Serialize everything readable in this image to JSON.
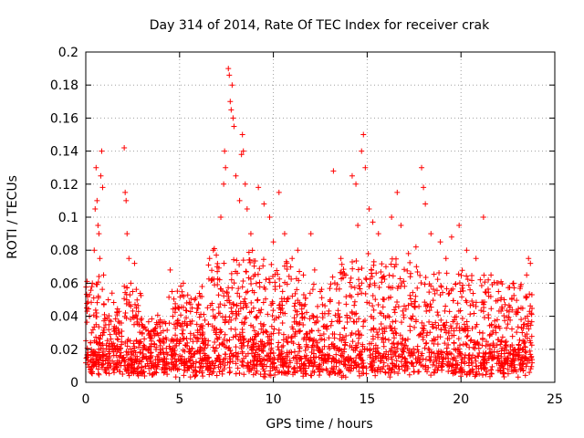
{
  "chart_data": {
    "type": "scatter",
    "title": "Day 314 of 2014, Rate Of TEC Index for receiver crak",
    "xlabel": "GPS time / hours",
    "ylabel": "ROTI / TECUs",
    "xlim": [
      0,
      25
    ],
    "ylim": [
      0,
      0.2
    ],
    "xticks": [
      0,
      5,
      10,
      15,
      20,
      25
    ],
    "yticks": [
      0,
      0.02,
      0.04,
      0.06,
      0.08,
      0.1,
      0.12,
      0.14,
      0.16,
      0.18,
      0.2
    ],
    "xtick_labels": [
      "0",
      "5",
      "10",
      "15",
      "20",
      "25"
    ],
    "ytick_labels": [
      "0",
      "0.02",
      "0.04",
      "0.06",
      "0.08",
      "0.1",
      "0.12",
      "0.14",
      "0.16",
      "0.18",
      "0.2"
    ],
    "grid": true,
    "marker": "+",
    "color": "#ff0000",
    "series": [
      {
        "name": "ROTI",
        "points": [
          [
            0.05,
            0.045
          ],
          [
            0.1,
            0.052
          ],
          [
            0.2,
            0.04
          ],
          [
            0.35,
            0.06
          ],
          [
            0.45,
            0.08
          ],
          [
            0.5,
            0.105
          ],
          [
            0.55,
            0.13
          ],
          [
            0.6,
            0.11
          ],
          [
            0.65,
            0.095
          ],
          [
            0.7,
            0.09
          ],
          [
            0.75,
            0.075
          ],
          [
            0.8,
            0.125
          ],
          [
            0.85,
            0.14
          ],
          [
            0.9,
            0.118
          ],
          [
            0.95,
            0.065
          ],
          [
            1.2,
            0.05
          ],
          [
            1.4,
            0.054
          ],
          [
            1.8,
            0.036
          ],
          [
            2.05,
            0.142
          ],
          [
            2.1,
            0.115
          ],
          [
            2.15,
            0.11
          ],
          [
            2.2,
            0.09
          ],
          [
            2.3,
            0.075
          ],
          [
            2.4,
            0.06
          ],
          [
            2.5,
            0.055
          ],
          [
            2.6,
            0.072
          ],
          [
            2.7,
            0.045
          ],
          [
            3.0,
            0.03
          ],
          [
            3.5,
            0.025
          ],
          [
            4.0,
            0.03
          ],
          [
            4.5,
            0.068
          ],
          [
            4.6,
            0.055
          ],
          [
            4.8,
            0.045
          ],
          [
            5.2,
            0.06
          ],
          [
            5.8,
            0.05
          ],
          [
            6.2,
            0.058
          ],
          [
            6.6,
            0.075
          ],
          [
            6.8,
            0.08
          ],
          [
            7.0,
            0.07
          ],
          [
            7.2,
            0.1
          ],
          [
            7.35,
            0.12
          ],
          [
            7.4,
            0.14
          ],
          [
            7.45,
            0.13
          ],
          [
            7.6,
            0.19
          ],
          [
            7.65,
            0.186
          ],
          [
            7.7,
            0.17
          ],
          [
            7.75,
            0.165
          ],
          [
            7.8,
            0.18
          ],
          [
            7.85,
            0.16
          ],
          [
            7.9,
            0.155
          ],
          [
            8.0,
            0.125
          ],
          [
            8.2,
            0.11
          ],
          [
            8.3,
            0.138
          ],
          [
            8.35,
            0.15
          ],
          [
            8.4,
            0.14
          ],
          [
            8.5,
            0.12
          ],
          [
            8.6,
            0.105
          ],
          [
            8.8,
            0.09
          ],
          [
            9.2,
            0.118
          ],
          [
            9.5,
            0.108
          ],
          [
            9.8,
            0.1
          ],
          [
            10.0,
            0.085
          ],
          [
            10.3,
            0.115
          ],
          [
            10.6,
            0.09
          ],
          [
            11.0,
            0.075
          ],
          [
            11.3,
            0.08
          ],
          [
            11.6,
            0.065
          ],
          [
            12.0,
            0.09
          ],
          [
            12.2,
            0.068
          ],
          [
            12.5,
            0.055
          ],
          [
            13.2,
            0.128
          ],
          [
            13.6,
            0.075
          ],
          [
            14.2,
            0.125
          ],
          [
            14.4,
            0.12
          ],
          [
            14.5,
            0.095
          ],
          [
            14.7,
            0.14
          ],
          [
            14.8,
            0.15
          ],
          [
            14.9,
            0.13
          ],
          [
            15.1,
            0.105
          ],
          [
            15.3,
            0.097
          ],
          [
            15.6,
            0.09
          ],
          [
            16.0,
            0.07
          ],
          [
            16.3,
            0.1
          ],
          [
            16.6,
            0.115
          ],
          [
            16.8,
            0.095
          ],
          [
            17.2,
            0.078
          ],
          [
            17.6,
            0.082
          ],
          [
            17.9,
            0.13
          ],
          [
            18.0,
            0.118
          ],
          [
            18.1,
            0.108
          ],
          [
            18.4,
            0.09
          ],
          [
            18.9,
            0.085
          ],
          [
            19.2,
            0.075
          ],
          [
            19.5,
            0.088
          ],
          [
            19.9,
            0.095
          ],
          [
            20.3,
            0.08
          ],
          [
            20.8,
            0.075
          ],
          [
            21.2,
            0.1
          ],
          [
            21.6,
            0.065
          ],
          [
            22.0,
            0.055
          ],
          [
            22.3,
            0.05
          ],
          [
            22.8,
            0.06
          ],
          [
            23.2,
            0.045
          ],
          [
            23.5,
            0.065
          ],
          [
            23.6,
            0.075
          ],
          [
            23.7,
            0.072
          ]
        ]
      }
    ]
  }
}
